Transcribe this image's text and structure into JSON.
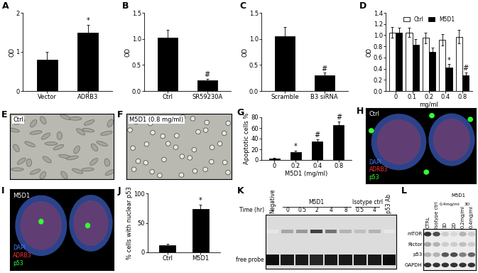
{
  "chart_data": [
    {
      "type": "bar",
      "panel": "A",
      "categories": [
        "Vector",
        "ADRB3"
      ],
      "values": [
        0.8,
        1.5
      ],
      "errors": [
        0.2,
        0.2
      ],
      "annotations": [
        null,
        "*"
      ],
      "color": "#000000",
      "ylabel": "OD",
      "ylim": [
        0,
        2
      ],
      "yticks": [
        0,
        1,
        2
      ]
    },
    {
      "type": "bar",
      "panel": "B",
      "categories": [
        "Ctrl",
        "SR59230A"
      ],
      "values": [
        1.02,
        0.2
      ],
      "errors": [
        0.15,
        0.03
      ],
      "annotations": [
        null,
        "#"
      ],
      "color": "#000000",
      "ylabel": "OD",
      "ylim": [
        0,
        1.5
      ],
      "yticks": [
        {
          "value": 0,
          "label": "0.0"
        },
        0.5,
        {
          "value": 1,
          "label": "1.0"
        },
        1.5
      ]
    },
    {
      "type": "bar",
      "panel": "C",
      "categories": [
        "Scramble",
        "B3 siRNA"
      ],
      "values": [
        1.05,
        0.3
      ],
      "errors": [
        0.18,
        0.05
      ],
      "annotations": [
        null,
        "#"
      ],
      "color": "#000000",
      "ylabel": "OD",
      "ylim": [
        0,
        1.5
      ],
      "yticks": [
        {
          "value": 0,
          "label": "0.0"
        },
        0.5,
        {
          "value": 1,
          "label": "1.0"
        },
        1.5
      ]
    },
    {
      "type": "bar",
      "panel": "D",
      "categories": [
        "0",
        "0.1",
        "0.2",
        "0.4",
        "0.8"
      ],
      "xlabel": "mg/ml",
      "ylabel": "OD",
      "series": [
        {
          "name": "Ctrl",
          "color": "#ffffff",
          "values": [
            1.05,
            1.05,
            0.95,
            0.92,
            0.97
          ],
          "errors": [
            0.1,
            0.08,
            0.1,
            0.1,
            0.12
          ],
          "annotations": [
            null,
            null,
            null,
            null,
            null
          ]
        },
        {
          "name": "M5D1",
          "color": "#000000",
          "values": [
            1.05,
            0.83,
            0.7,
            0.42,
            0.28
          ],
          "errors": [
            0.08,
            0.1,
            0.08,
            0.06,
            0.05
          ],
          "annotations": [
            null,
            null,
            null,
            "*",
            "#"
          ]
        }
      ],
      "legend": "upper center",
      "ylim": [
        0,
        1.4
      ],
      "yticks": [
        {
          "value": 0,
          "label": "0.0"
        },
        0.2,
        0.4,
        0.6,
        0.8,
        {
          "value": 1,
          "label": "1.0"
        },
        1.2,
        1.4
      ]
    },
    {
      "type": "bar",
      "panel": "G",
      "categories": [
        "0",
        "0.2",
        "0.4",
        "0.8"
      ],
      "values": [
        3,
        15,
        35,
        65
      ],
      "errors": [
        1,
        3,
        4,
        7
      ],
      "annotations": [
        null,
        "*",
        "#",
        "#"
      ],
      "color": "#000000",
      "xlabel": "M5D1 (mg/ml)",
      "ylabel": "Apoptotic cells %",
      "ylim": [
        0,
        80
      ],
      "yticks": [
        0,
        20,
        40,
        60,
        80
      ]
    },
    {
      "type": "bar",
      "panel": "J",
      "categories": [
        "Ctrl",
        "M5D1"
      ],
      "values": [
        12,
        73
      ],
      "errors": [
        2,
        8
      ],
      "annotations": [
        null,
        "*"
      ],
      "color": "#000000",
      "ylabel": "% cells with nuclear p53",
      "ylim": [
        0,
        100
      ],
      "yticks": [
        0,
        50,
        100
      ]
    }
  ],
  "images": [
    {
      "panel": "E",
      "kind": "phase",
      "label": "Ctrl"
    },
    {
      "panel": "F",
      "kind": "phase",
      "label": "M5D1 (0.8 mg/ml)"
    },
    {
      "panel": "H",
      "kind": "fluorescence",
      "label": "Ctrl",
      "channels": [
        {
          "name": "DAPI",
          "color": "#4f7bff"
        },
        {
          "name": "ADRB3",
          "color": "#ff3333"
        },
        {
          "name": "p53",
          "color": "#33ff33"
        }
      ]
    },
    {
      "panel": "I",
      "kind": "fluorescence",
      "label": "M5D1",
      "channels": [
        {
          "name": "DAPI",
          "color": "#4f7bff"
        },
        {
          "name": "ADRB3",
          "color": "#ff3333"
        },
        {
          "name": "p53",
          "color": "#33ff33"
        }
      ]
    }
  ],
  "blots": [
    {
      "panel": "K",
      "groups": [
        {
          "label": "Negative",
          "lanes": [
            0
          ]
        },
        {
          "label": "M5D1",
          "lanes": [
            1,
            2,
            3,
            4,
            5
          ]
        },
        {
          "label": "Isotype ctrl",
          "lanes": [
            6,
            7
          ]
        },
        {
          "label": "p53 Ab",
          "lanes": [
            8
          ]
        }
      ],
      "row_label": "Time (hr)",
      "lane_labels": [
        null,
        "0",
        "0.5",
        "2",
        "4",
        "8",
        "0.5",
        "4",
        null
      ],
      "band_label": "free probe",
      "shift_band": [
        0.1,
        0.35,
        0.4,
        0.75,
        0.55,
        0.3,
        0.25,
        0.3,
        0.1
      ],
      "free_probe": [
        0.95,
        0.9,
        0.9,
        0.85,
        0.9,
        0.9,
        0.9,
        0.9,
        0.95
      ]
    },
    {
      "panel": "L",
      "lanes": [
        "CTRL",
        "Isotype ctrl",
        "3D",
        "2D",
        "0.2mg/ml",
        "0.4mg/ml"
      ],
      "groups": [
        {
          "label": "M5D1",
          "lanes": [
            2,
            3,
            4,
            5
          ],
          "subgroups": [
            {
              "label": "0.4mg/ml",
              "lanes": [
                2,
                3
              ]
            },
            {
              "label": "3D",
              "lanes": [
                4,
                5
              ]
            }
          ]
        }
      ],
      "rows": [
        {
          "name": "mTOR",
          "bands": [
            0.8,
            0.7,
            0.2,
            0.15,
            0.3,
            0.2
          ]
        },
        {
          "name": "Rictor",
          "bands": [
            0.35,
            0.3,
            0.2,
            0.2,
            0.25,
            0.2
          ]
        },
        {
          "name": "p53",
          "bands": [
            0.3,
            0.3,
            0.65,
            0.7,
            0.5,
            0.6
          ]
        },
        {
          "name": "GAPDH",
          "bands": [
            0.8,
            0.8,
            0.8,
            0.8,
            0.8,
            0.8
          ]
        }
      ]
    }
  ]
}
